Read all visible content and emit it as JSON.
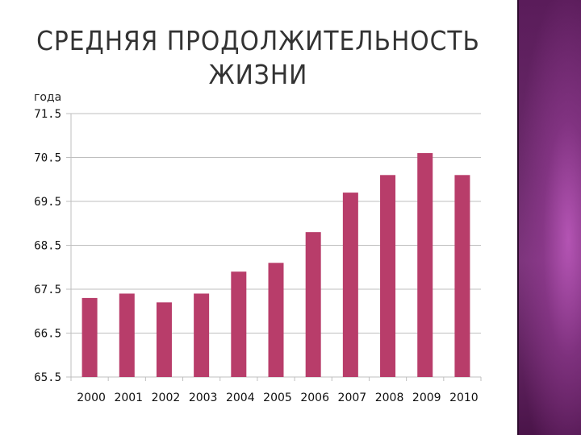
{
  "title": "СРЕДНЯЯ ПРОДОЛЖИТЕЛЬНОСТЬ ЖИЗНИ",
  "colors": {
    "bar": "#b83d6a",
    "grid": "#bfbfbf",
    "panel": "#6a2a6a"
  },
  "chart_data": {
    "type": "bar",
    "title": "СРЕДНЯЯ ПРОДОЛЖИТЕЛЬНОСТЬ ЖИЗНИ",
    "ylabel": "года",
    "xlabel": "",
    "categories": [
      "2000",
      "2001",
      "2002",
      "2003",
      "2004",
      "2005",
      "2006",
      "2007",
      "2008",
      "2009",
      "2010"
    ],
    "values": [
      67.3,
      67.4,
      67.2,
      67.4,
      67.9,
      68.1,
      68.8,
      69.7,
      70.1,
      70.6,
      70.1
    ],
    "yticks": [
      "71.5",
      "70.5",
      "69.5",
      "68.5",
      "67.5",
      "66.5",
      "65.5"
    ],
    "ylim": [
      65.5,
      71.5
    ],
    "grid": true,
    "legend": "none"
  }
}
